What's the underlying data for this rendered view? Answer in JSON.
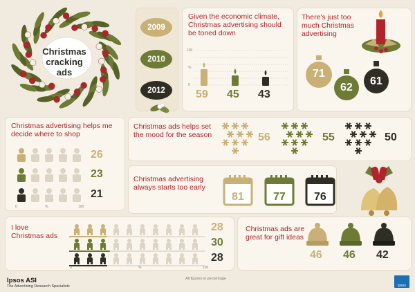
{
  "colors": {
    "gold": "#c9b077",
    "olive": "#6e7b35",
    "dark": "#2e2e25",
    "red": "#b0242b",
    "bg": "#f1ebdf"
  },
  "wreath": {
    "title": "Christmas cracking ads"
  },
  "years": [
    "2009",
    "2010",
    "2012"
  ],
  "toned": {
    "title": "Given the economic climate, Christmas advertising should be toned down",
    "axis_top": "100",
    "axis_mid": "%",
    "axis_bottom": "0",
    "values": [
      "59",
      "45",
      "43"
    ]
  },
  "toomuch": {
    "title": "There's just too much Christmas advertising",
    "values": [
      "71",
      "62",
      "61"
    ]
  },
  "shop": {
    "title": "Christmas advertising helps me decide where to shop",
    "values": [
      "26",
      "23",
      "21"
    ],
    "axis": [
      "0",
      "%",
      "100"
    ]
  },
  "mood": {
    "title": "Christmas ads helps set the mood for the season",
    "values": [
      "56",
      "55",
      "50"
    ]
  },
  "early": {
    "title": "Christmas advertising always starts too early",
    "values": [
      "81",
      "77",
      "76"
    ]
  },
  "love": {
    "title": "I love Christmas ads",
    "values": [
      "28",
      "30",
      "28"
    ],
    "axis": [
      "0",
      "%",
      "100"
    ]
  },
  "gift": {
    "title": "Christmas ads are great for gift ideas",
    "values": [
      "46",
      "46",
      "42"
    ]
  },
  "footer": {
    "brand": "Ipsos ASI",
    "tagline": "The Advertising Research Specialists",
    "note": "All figures in percentage",
    "logo": "Ipsos"
  }
}
